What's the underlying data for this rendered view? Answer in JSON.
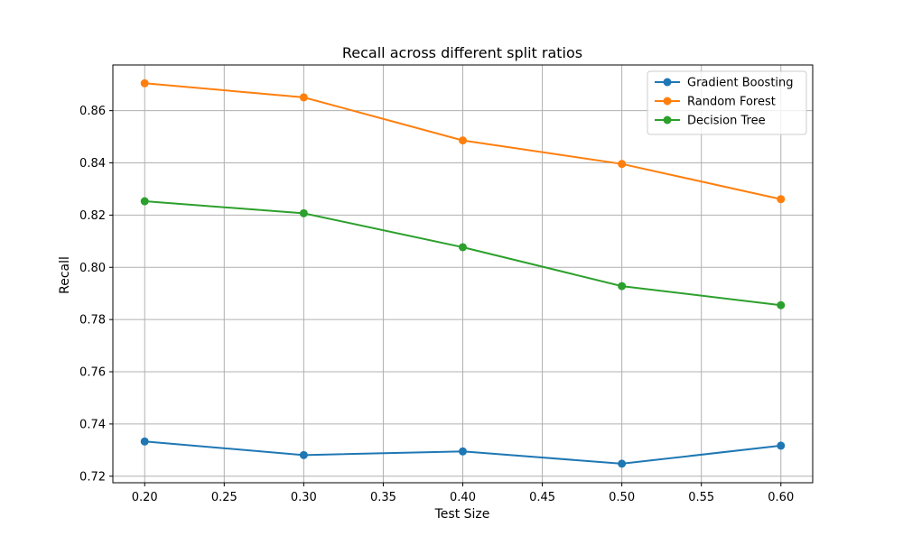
{
  "chart_data": {
    "type": "line",
    "title": "Recall across different split ratios",
    "xlabel": "Test Size",
    "ylabel": "Recall",
    "x": [
      0.2,
      0.3,
      0.4,
      0.5,
      0.6
    ],
    "xlim": [
      0.18,
      0.62
    ],
    "ylim": [
      0.7175,
      0.8775
    ],
    "xticks": [
      "0.20",
      "0.25",
      "0.30",
      "0.35",
      "0.40",
      "0.45",
      "0.50",
      "0.55",
      "0.60"
    ],
    "yticks": [
      "0.72",
      "0.74",
      "0.76",
      "0.78",
      "0.80",
      "0.82",
      "0.84",
      "0.86"
    ],
    "grid": true,
    "legend_position": "top-right",
    "series": [
      {
        "name": "Gradient Boosting",
        "color": "#1f77b4",
        "values": [
          0.7333,
          0.7281,
          0.7295,
          0.7248,
          0.7317
        ]
      },
      {
        "name": "Random Forest",
        "color": "#ff7f0e",
        "values": [
          0.8705,
          0.8651,
          0.8486,
          0.8396,
          0.8261
        ]
      },
      {
        "name": "Decision Tree",
        "color": "#2ca02c",
        "values": [
          0.8253,
          0.8207,
          0.8077,
          0.7928,
          0.7855
        ]
      }
    ]
  }
}
